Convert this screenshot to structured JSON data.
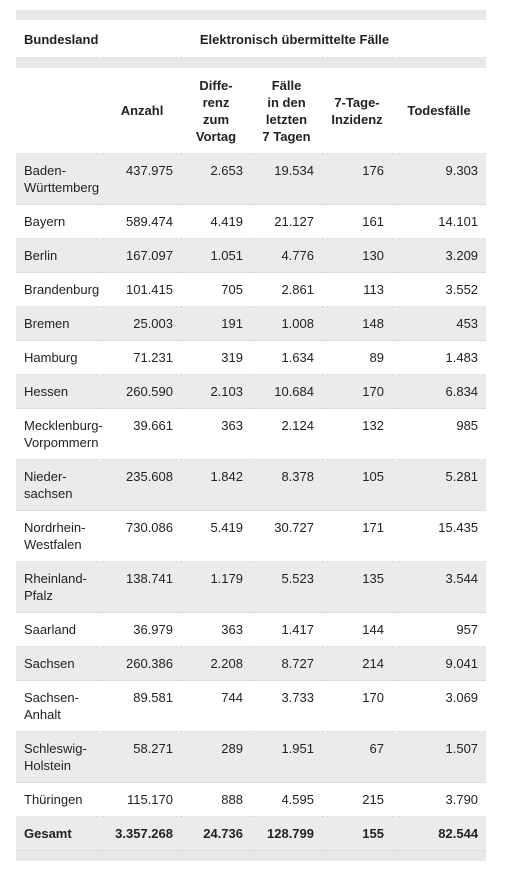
{
  "table": {
    "header_top": [
      "Bundesland",
      "Elektronisch übermittelte Fälle"
    ],
    "columns": [
      "",
      "Anzahl",
      "Diffe-\nrenz\nzum\nVortag",
      "Fälle\nin den\nletzten\n7 Tagen",
      "7-Tage-\nInzidenz",
      "Todesfälle"
    ],
    "rows": [
      [
        "Baden-\nWürttemberg",
        "437.975",
        "2.653",
        "19.534",
        "176",
        "9.303"
      ],
      [
        "Bayern",
        "589.474",
        "4.419",
        "21.127",
        "161",
        "14.101"
      ],
      [
        "Berlin",
        "167.097",
        "1.051",
        "4.776",
        "130",
        "3.209"
      ],
      [
        "Brandenburg",
        "101.415",
        "705",
        "2.861",
        "113",
        "3.552"
      ],
      [
        "Bremen",
        "25.003",
        "191",
        "1.008",
        "148",
        "453"
      ],
      [
        "Hamburg",
        "71.231",
        "319",
        "1.634",
        "89",
        "1.483"
      ],
      [
        "Hessen",
        "260.590",
        "2.103",
        "10.684",
        "170",
        "6.834"
      ],
      [
        "Mecklenburg-\nVorpommern",
        "39.661",
        "363",
        "2.124",
        "132",
        "985"
      ],
      [
        "Nieder-\nsachsen",
        "235.608",
        "1.842",
        "8.378",
        "105",
        "5.281"
      ],
      [
        "Nordrhein-\nWestfalen",
        "730.086",
        "5.419",
        "30.727",
        "171",
        "15.435"
      ],
      [
        "Rheinland-\nPfalz",
        "138.741",
        "1.179",
        "5.523",
        "135",
        "3.544"
      ],
      [
        "Saarland",
        "36.979",
        "363",
        "1.417",
        "144",
        "957"
      ],
      [
        "Sachsen",
        "260.386",
        "2.208",
        "8.727",
        "214",
        "9.041"
      ],
      [
        "Sachsen-\nAnhalt",
        "89.581",
        "744",
        "3.733",
        "170",
        "3.069"
      ],
      [
        "Schleswig-\nHolstein",
        "58.271",
        "289",
        "1.951",
        "67",
        "1.507"
      ],
      [
        "Thüringen",
        "115.170",
        "888",
        "4.595",
        "215",
        "3.790"
      ]
    ],
    "total": [
      "Gesamt",
      "3.357.268",
      "24.736",
      "128.799",
      "155",
      "82.544"
    ]
  }
}
